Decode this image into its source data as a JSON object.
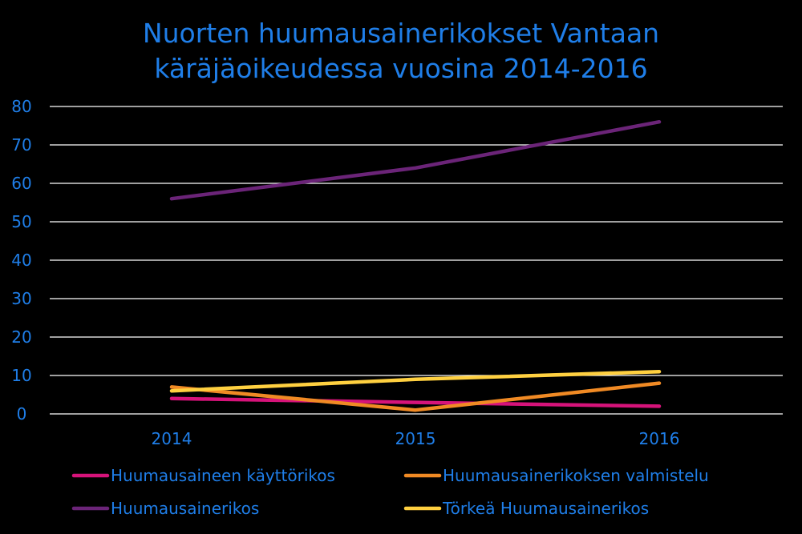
{
  "chart_data": {
    "type": "line",
    "title_lines": [
      "Nuorten huumausainerikokset Vantaan",
      "käräjäoikeudessa vuosina 2014-2016"
    ],
    "categories": [
      "2014",
      "2015",
      "2016"
    ],
    "ylim": [
      0,
      80
    ],
    "yticks": [
      0,
      10,
      20,
      30,
      40,
      50,
      60,
      70,
      80
    ],
    "grid": true,
    "legend_position": "bottom",
    "series": [
      {
        "name": "Huumausaineen käyttörikos",
        "color": "#d6137a",
        "values": [
          4,
          3,
          2
        ]
      },
      {
        "name": "Huumausainerikoksen valmistelu",
        "color": "#f08a24",
        "values": [
          7,
          1,
          8
        ]
      },
      {
        "name": "Huumausainerikos",
        "color": "#6b2478",
        "values": [
          56,
          64,
          76
        ]
      },
      {
        "name": "Törkeä Huumausainerikos",
        "color": "#ffd040",
        "values": [
          6,
          9,
          11
        ]
      }
    ]
  }
}
